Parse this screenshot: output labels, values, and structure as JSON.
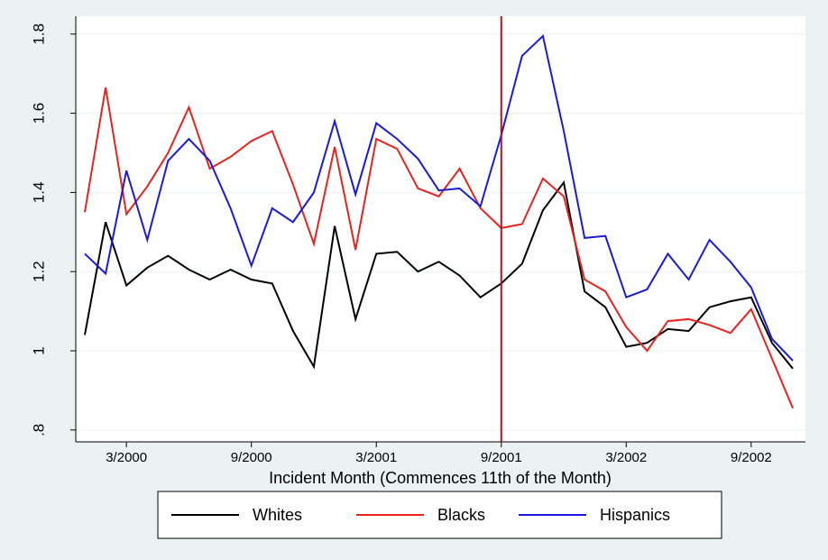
{
  "chart_data": {
    "type": "line",
    "x_label": "Incident Month (Commences 11th of the Month)",
    "categories": [
      null,
      null,
      "3/2000",
      null,
      null,
      null,
      null,
      null,
      "9/2000",
      null,
      null,
      null,
      null,
      null,
      "3/2001",
      null,
      null,
      null,
      null,
      null,
      "9/2001",
      null,
      null,
      null,
      null,
      null,
      "3/2002",
      null,
      null,
      null,
      null,
      null,
      "9/2002",
      null,
      null
    ],
    "series": [
      {
        "name": "Whites",
        "color": "#000000",
        "values": [
          1.04,
          1.325,
          1.165,
          1.21,
          1.24,
          1.205,
          1.18,
          1.205,
          1.18,
          1.17,
          1.05,
          0.96,
          1.315,
          1.08,
          1.245,
          1.25,
          1.2,
          1.225,
          1.19,
          1.135,
          1.17,
          1.22,
          1.355,
          1.425,
          1.15,
          1.11,
          1.01,
          1.02,
          1.055,
          1.05,
          1.11,
          1.125,
          1.135,
          1.02,
          0.955
        ]
      },
      {
        "name": "Blacks",
        "color": "#e8231e",
        "values": [
          1.35,
          1.665,
          1.345,
          1.415,
          1.5,
          1.615,
          1.46,
          1.49,
          1.53,
          1.555,
          1.42,
          1.27,
          1.515,
          1.255,
          1.535,
          1.51,
          1.41,
          1.39,
          1.46,
          1.36,
          1.31,
          1.32,
          1.435,
          1.39,
          1.18,
          1.15,
          1.06,
          1.0,
          1.075,
          1.08,
          1.065,
          1.045,
          1.105,
          0.98,
          0.855
        ]
      },
      {
        "name": "Hispanics",
        "color": "#1a1adc",
        "values": [
          1.245,
          1.195,
          1.455,
          1.28,
          1.48,
          1.535,
          1.48,
          1.36,
          1.215,
          1.36,
          1.325,
          1.4,
          1.58,
          1.395,
          1.575,
          1.535,
          1.485,
          1.405,
          1.41,
          1.365,
          1.545,
          1.745,
          1.795,
          1.555,
          1.285,
          1.29,
          1.135,
          1.155,
          1.245,
          1.18,
          1.28,
          1.225,
          1.16,
          1.03,
          0.975
        ]
      }
    ],
    "ylim": [
      0.77,
      1.845
    ],
    "yticks": [
      {
        "value": 0.8,
        "label": ".8"
      },
      1,
      1.2,
      1.4,
      1.6,
      1.8
    ],
    "grid": true,
    "vline": {
      "category": 20,
      "color": "#b5121b"
    },
    "legend": "bottom"
  }
}
